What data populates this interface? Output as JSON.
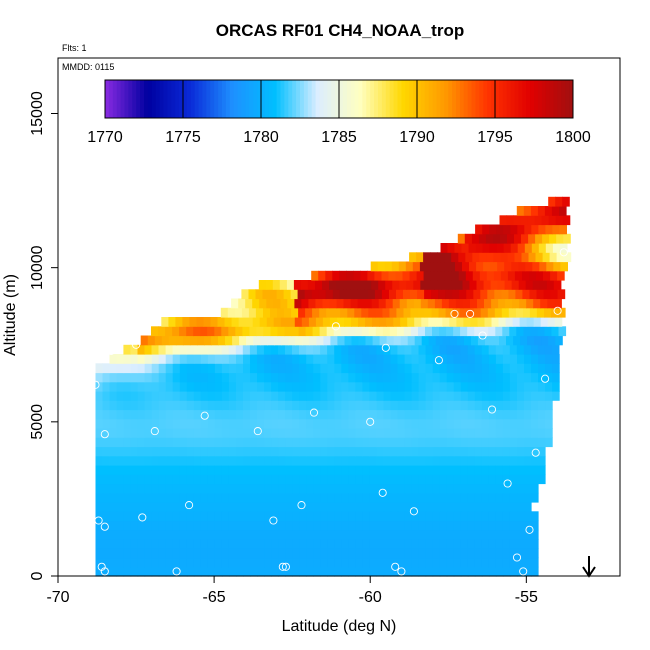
{
  "chart_data": {
    "type": "heatmap",
    "title": "ORCAS RF01 CH4_NOAA_trop",
    "annotations": {
      "flights": "Flts: 1",
      "date": "MMDD: 0115"
    },
    "xlabel": "Latitude (deg N)",
    "ylabel": "Altitude (m)",
    "xlim": [
      -70,
      -52
    ],
    "ylim": [
      0,
      16800
    ],
    "x_ticks": [
      -70,
      -65,
      -60,
      -55
    ],
    "x_tick_labels": [
      "-70",
      "-65",
      "-60",
      "-55"
    ],
    "y_ticks": [
      0,
      5000,
      10000,
      15000
    ],
    "y_tick_labels": [
      "0",
      "5000",
      "10000",
      "15000"
    ],
    "colorbar": {
      "min": 1770,
      "max": 1800,
      "ticks": [
        1770,
        1775,
        1780,
        1785,
        1790,
        1795,
        1800
      ],
      "tick_labels": [
        "1770",
        "1775",
        "1780",
        "1785",
        "1790",
        "1795",
        "1800"
      ],
      "colors": [
        "#8a2be2",
        "#0000a0",
        "#0a2ad8",
        "#1e90ff",
        "#00bfff",
        "#dceeff",
        "#ffffc0",
        "#ffd700",
        "#ff9900",
        "#ff3300",
        "#e00000",
        "#a01010"
      ]
    },
    "sample_points": [
      {
        "x": -68.8,
        "y": 6200
      },
      {
        "x": -68.3,
        "y": 7300
      },
      {
        "x": -67.5,
        "y": 7500
      },
      {
        "x": -68.5,
        "y": 4600
      },
      {
        "x": -66.9,
        "y": 4700
      },
      {
        "x": -65.3,
        "y": 5200
      },
      {
        "x": -63.6,
        "y": 4700
      },
      {
        "x": -61.8,
        "y": 5300
      },
      {
        "x": -60.0,
        "y": 5000
      },
      {
        "x": -56.1,
        "y": 5400
      },
      {
        "x": -55.6,
        "y": 3000
      },
      {
        "x": -54.7,
        "y": 4000
      },
      {
        "x": -54.4,
        "y": 6400
      },
      {
        "x": -57.8,
        "y": 7000
      },
      {
        "x": -59.5,
        "y": 7400
      },
      {
        "x": -61.1,
        "y": 8100
      },
      {
        "x": -57.3,
        "y": 8500
      },
      {
        "x": -56.8,
        "y": 8500
      },
      {
        "x": -56.4,
        "y": 7800
      },
      {
        "x": -54.0,
        "y": 8600
      },
      {
        "x": -53.8,
        "y": 10500
      },
      {
        "x": -68.7,
        "y": 1800
      },
      {
        "x": -68.5,
        "y": 1600
      },
      {
        "x": -67.3,
        "y": 1900
      },
      {
        "x": -65.8,
        "y": 2300
      },
      {
        "x": -63.1,
        "y": 1800
      },
      {
        "x": -62.2,
        "y": 2300
      },
      {
        "x": -59.6,
        "y": 2700
      },
      {
        "x": -58.6,
        "y": 2100
      },
      {
        "x": -54.9,
        "y": 1500
      },
      {
        "x": -68.6,
        "y": 300
      },
      {
        "x": -68.5,
        "y": 150
      },
      {
        "x": -66.2,
        "y": 150
      },
      {
        "x": -62.7,
        "y": 300
      },
      {
        "x": -62.8,
        "y": 300
      },
      {
        "x": -59.2,
        "y": 300
      },
      {
        "x": -59.0,
        "y": 150
      },
      {
        "x": -55.3,
        "y": 600
      },
      {
        "x": -55.1,
        "y": 150
      }
    ]
  }
}
